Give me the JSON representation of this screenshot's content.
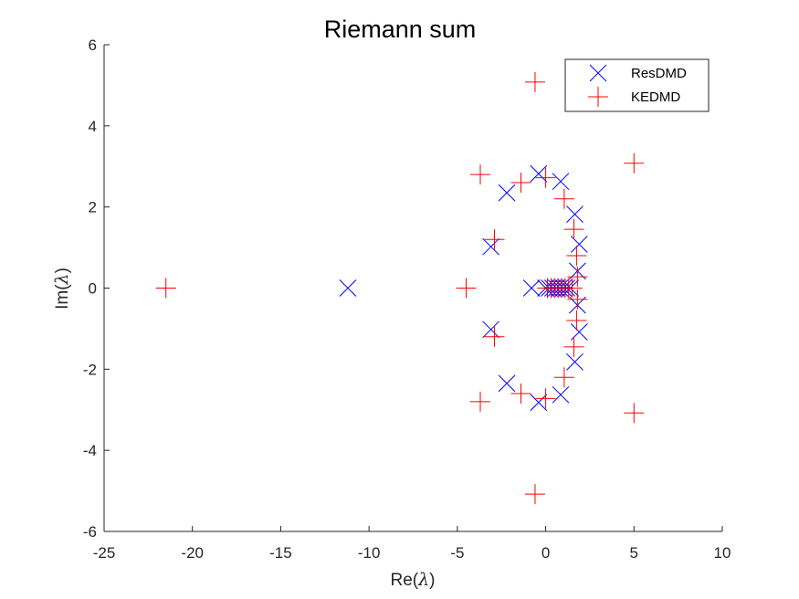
{
  "chart_data": {
    "type": "scatter",
    "title": "Riemann sum",
    "xlabel": "Re(",
    "xlabel_symbol": "λ",
    "xlabel_end": ")",
    "ylabel": "Im(",
    "ylabel_symbol": "λ",
    "ylabel_end": ")",
    "xlim": [
      -25,
      10
    ],
    "ylim": [
      -6,
      6
    ],
    "xticks": [
      -25,
      -20,
      -15,
      -10,
      -5,
      0,
      5,
      10
    ],
    "yticks": [
      -6,
      -4,
      -2,
      0,
      2,
      4,
      6
    ],
    "xtick_labels": [
      "-25",
      "-20",
      "-15",
      "-10",
      "-5",
      "0",
      "5",
      "10"
    ],
    "ytick_labels": [
      "-6",
      "-4",
      "-2",
      "0",
      "2",
      "4",
      "6"
    ],
    "grid": false,
    "legend_position": "top-right",
    "series": [
      {
        "name": "ResDMD",
        "marker": "x",
        "color": "#0000ff",
        "points": [
          [
            -11.2,
            0
          ],
          [
            -0.8,
            0
          ],
          [
            -0.4,
            2.82
          ],
          [
            -0.4,
            -2.82
          ],
          [
            0.85,
            2.63
          ],
          [
            0.85,
            -2.63
          ],
          [
            -2.2,
            2.35
          ],
          [
            -2.2,
            -2.35
          ],
          [
            1.65,
            1.82
          ],
          [
            1.65,
            -1.82
          ],
          [
            1.9,
            1.08
          ],
          [
            1.9,
            -1.08
          ],
          [
            1.8,
            0.42
          ],
          [
            1.8,
            -0.42
          ],
          [
            -3.1,
            1.02
          ],
          [
            -3.1,
            -1.02
          ],
          [
            0.0,
            0
          ],
          [
            0.2,
            0
          ],
          [
            0.4,
            0
          ],
          [
            0.6,
            0
          ],
          [
            0.8,
            0
          ],
          [
            1.0,
            0
          ],
          [
            1.2,
            0
          ],
          [
            1.4,
            0
          ]
        ]
      },
      {
        "name": "KEDMD",
        "marker": "+",
        "color": "#ff0000",
        "points": [
          [
            -21.5,
            0
          ],
          [
            -4.5,
            0
          ],
          [
            -0.6,
            5.08
          ],
          [
            -0.6,
            -5.08
          ],
          [
            5.0,
            3.08
          ],
          [
            5.0,
            -3.08
          ],
          [
            -3.7,
            2.8
          ],
          [
            -3.7,
            -2.8
          ],
          [
            -1.4,
            2.6
          ],
          [
            -1.4,
            -2.6
          ],
          [
            0.0,
            2.72
          ],
          [
            0.0,
            -2.72
          ],
          [
            1.05,
            2.2
          ],
          [
            1.05,
            -2.2
          ],
          [
            1.6,
            1.45
          ],
          [
            1.6,
            -1.45
          ],
          [
            1.75,
            0.8
          ],
          [
            1.75,
            -0.8
          ],
          [
            1.8,
            0.28
          ],
          [
            1.8,
            -0.28
          ],
          [
            -2.9,
            1.2
          ],
          [
            -2.9,
            -1.2
          ],
          [
            0.1,
            0
          ],
          [
            0.3,
            0
          ],
          [
            0.5,
            0
          ],
          [
            0.7,
            0
          ],
          [
            0.9,
            0
          ],
          [
            1.1,
            0
          ],
          [
            1.3,
            0
          ],
          [
            1.5,
            0
          ]
        ]
      }
    ]
  }
}
